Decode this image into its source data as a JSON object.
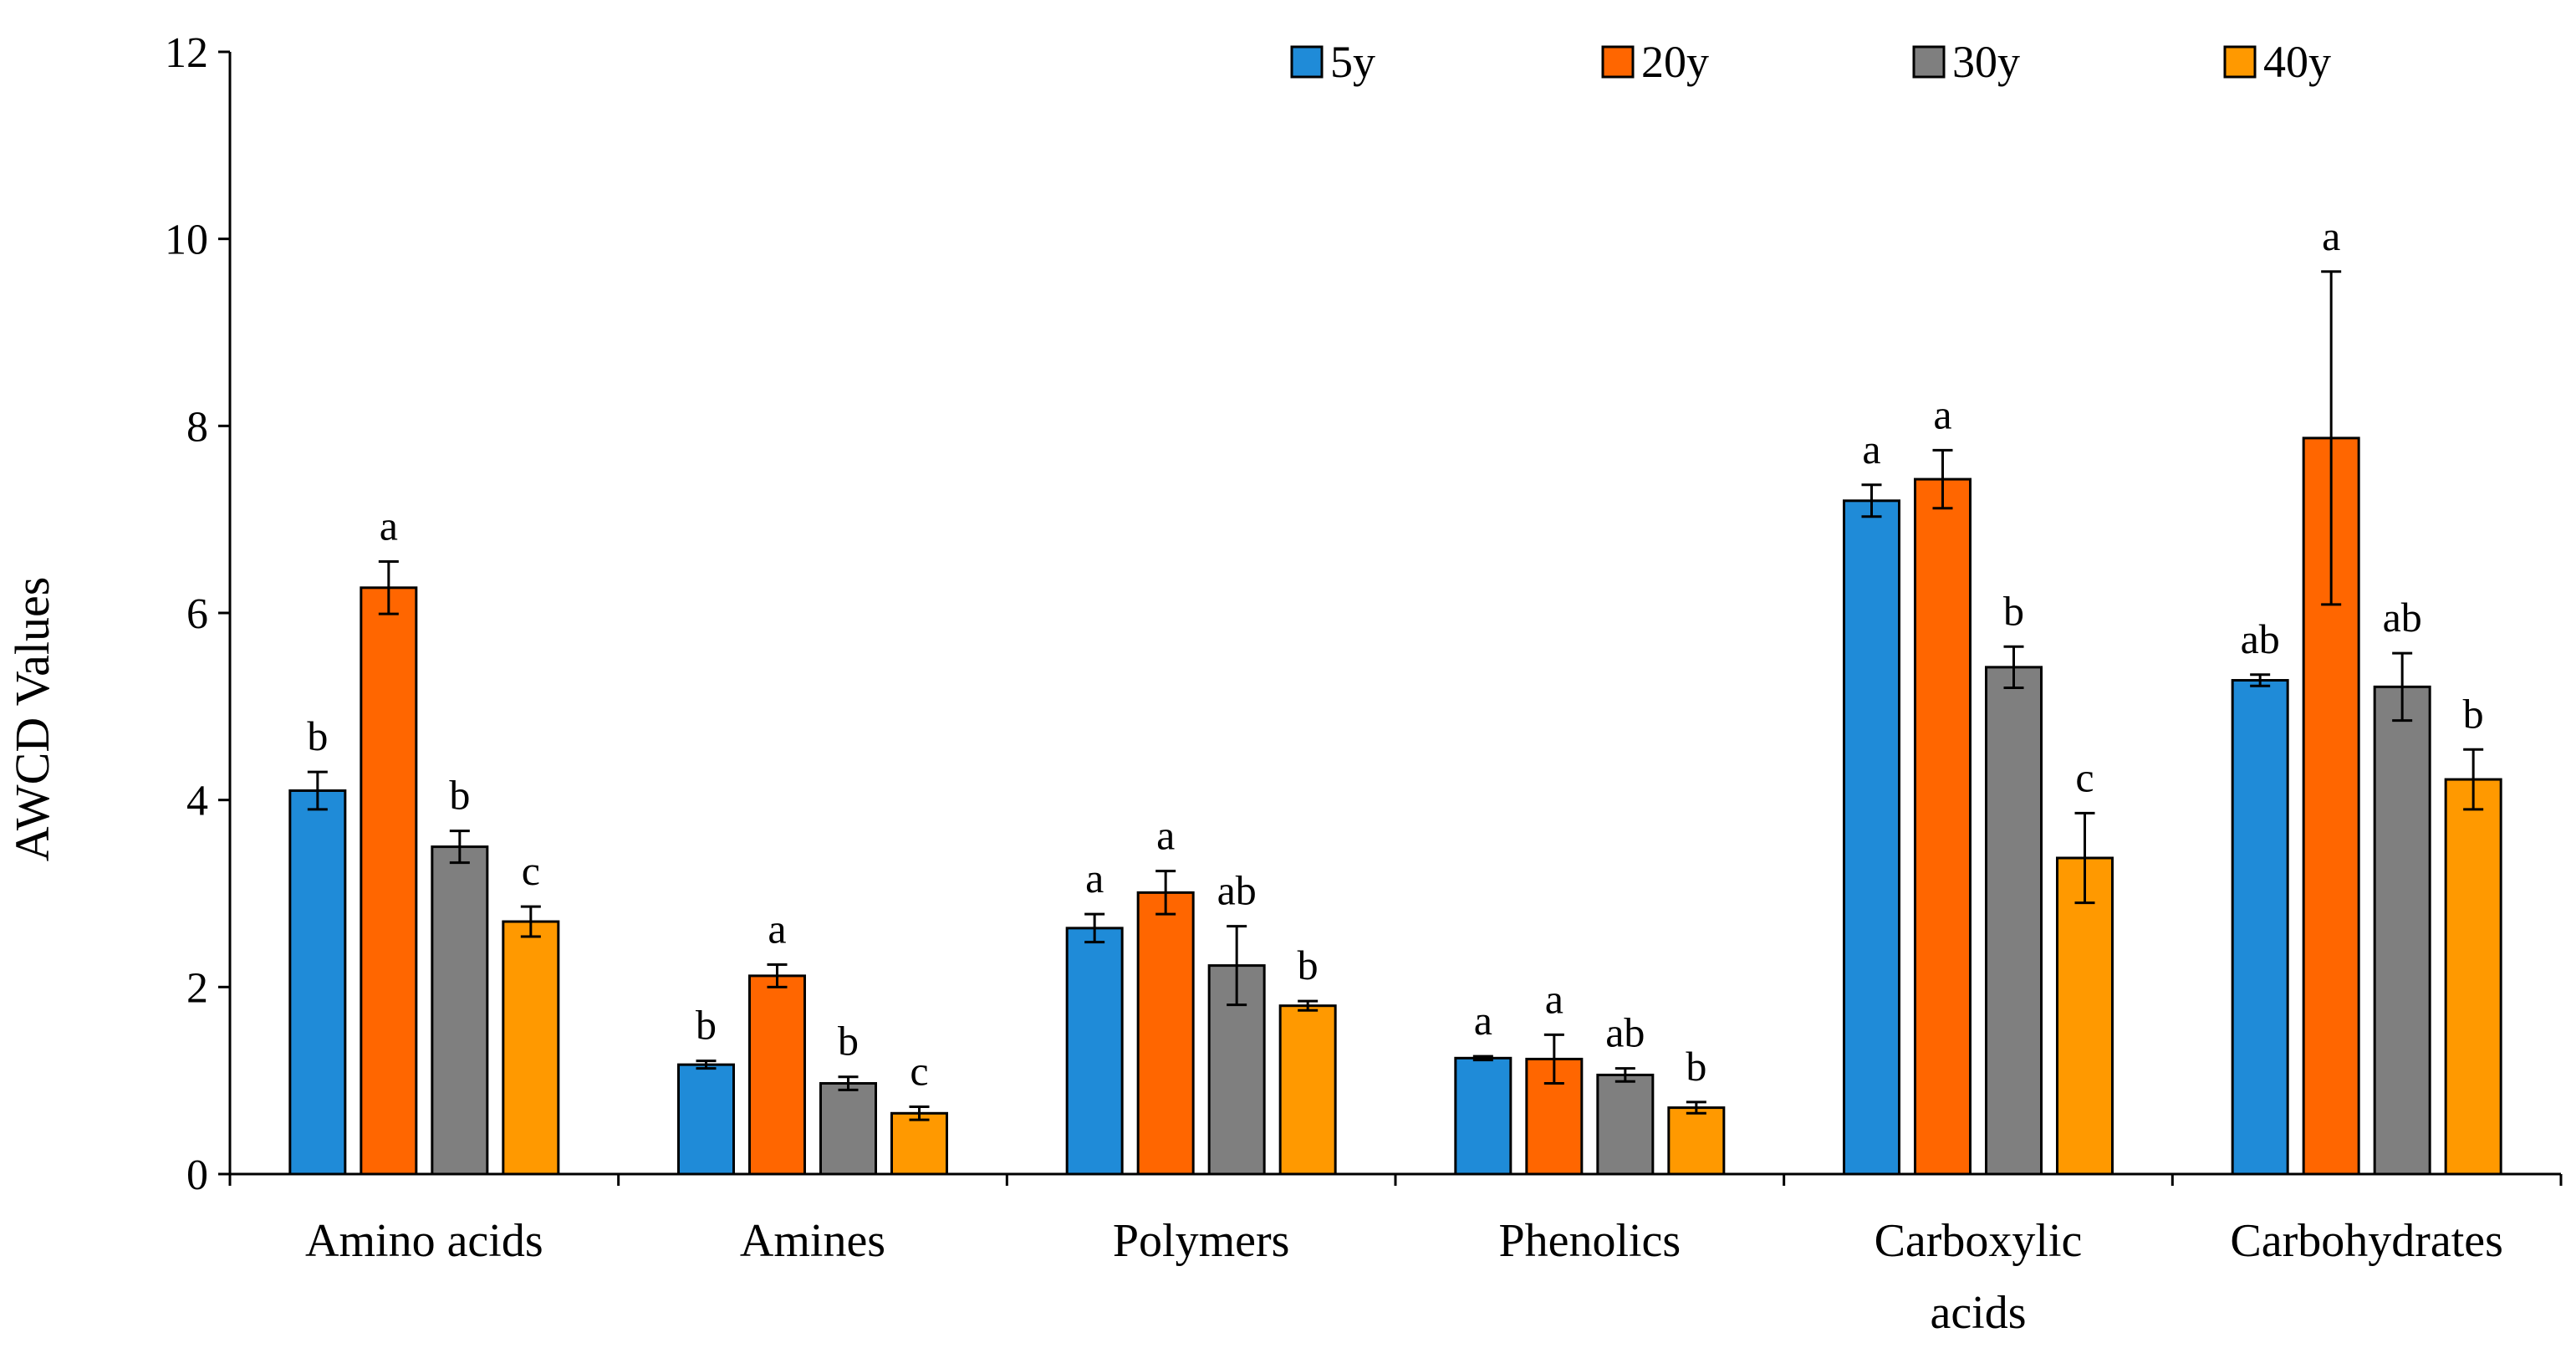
{
  "chart_data": {
    "type": "bar",
    "title": "",
    "xlabel": "",
    "ylabel": "AWCD Values",
    "ylim": [
      0,
      12
    ],
    "yticks": [
      "0",
      "2",
      "4",
      "6",
      "8",
      "10",
      "12"
    ],
    "grid": false,
    "legend_position": "top",
    "categories": [
      [
        "Amino acids"
      ],
      [
        "Amines"
      ],
      [
        "Polymers"
      ],
      [
        "Phenolics"
      ],
      [
        "Carboxylic",
        "acids"
      ],
      [
        "Carbohydrates"
      ]
    ],
    "series": [
      {
        "name": "5y",
        "color": "#1f8bd8",
        "values": [
          4.1,
          1.17,
          2.63,
          1.24,
          7.2,
          5.28
        ],
        "errors": [
          0.2,
          0.04,
          0.15,
          0.02,
          0.17,
          0.06
        ],
        "labels": [
          "b",
          "b",
          "a",
          "a",
          "a",
          "ab"
        ]
      },
      {
        "name": "20y",
        "color": "#ff6600",
        "values": [
          6.27,
          2.12,
          3.01,
          1.23,
          7.43,
          7.87
        ],
        "errors": [
          0.28,
          0.12,
          0.23,
          0.26,
          0.31,
          1.78
        ],
        "labels": [
          "a",
          "a",
          "a",
          "a",
          "a",
          "a"
        ]
      },
      {
        "name": "30y",
        "color": "#7f7f7f",
        "values": [
          3.5,
          0.97,
          2.23,
          1.06,
          5.42,
          5.21
        ],
        "errors": [
          0.17,
          0.07,
          0.42,
          0.07,
          0.22,
          0.36
        ],
        "labels": [
          "b",
          "b",
          "ab",
          "ab",
          "b",
          "ab"
        ]
      },
      {
        "name": "40y",
        "color": "#ff9900",
        "values": [
          2.7,
          0.65,
          1.8,
          0.71,
          3.38,
          4.22
        ],
        "errors": [
          0.16,
          0.07,
          0.05,
          0.06,
          0.48,
          0.32
        ],
        "labels": [
          "c",
          "c",
          "b",
          "b",
          "c",
          "b"
        ]
      }
    ]
  }
}
